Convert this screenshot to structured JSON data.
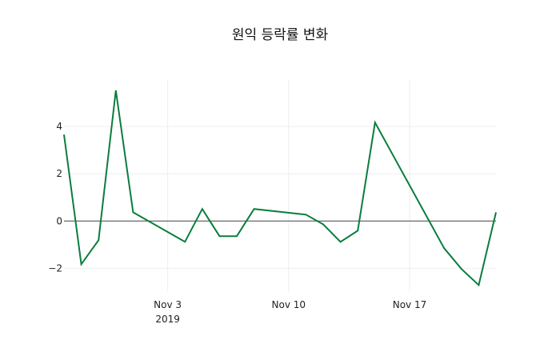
{
  "chart_data": {
    "type": "line",
    "title": "원익 등락률 변화",
    "xlabel": "",
    "ylabel": "",
    "x": [
      "2019-10-28",
      "2019-10-29",
      "2019-10-30",
      "2019-10-31",
      "2019-11-01",
      "2019-11-04",
      "2019-11-05",
      "2019-11-06",
      "2019-11-07",
      "2019-11-08",
      "2019-11-11",
      "2019-11-12",
      "2019-11-13",
      "2019-11-14",
      "2019-11-15",
      "2019-11-19",
      "2019-11-20",
      "2019-11-21",
      "2019-11-22"
    ],
    "series": [
      {
        "name": "등락률",
        "color": "#0a7d3e",
        "values": [
          3.66,
          -1.83,
          -0.81,
          5.53,
          0.37,
          -0.88,
          0.51,
          -0.64,
          -0.64,
          0.51,
          0.27,
          -0.14,
          -0.88,
          -0.41,
          4.17,
          -1.15,
          -2.03,
          -2.71,
          0.37
        ]
      }
    ],
    "x_range": [
      "2019-10-28",
      "2019-11-22"
    ],
    "ylim": [
      -2.97,
      5.97
    ],
    "y_ticks": [
      -2,
      0,
      2,
      4
    ],
    "y_tick_labels": [
      "−2",
      "0",
      "2",
      "4"
    ],
    "x_ticks": [
      "2019-11-03",
      "2019-11-10",
      "2019-11-17"
    ],
    "x_tick_labels": [
      "Nov 3",
      "Nov 10",
      "Nov 17"
    ],
    "x_tick_sublabels": [
      "2019",
      "",
      ""
    ],
    "grid": true,
    "legend": false,
    "zero_line": true
  }
}
